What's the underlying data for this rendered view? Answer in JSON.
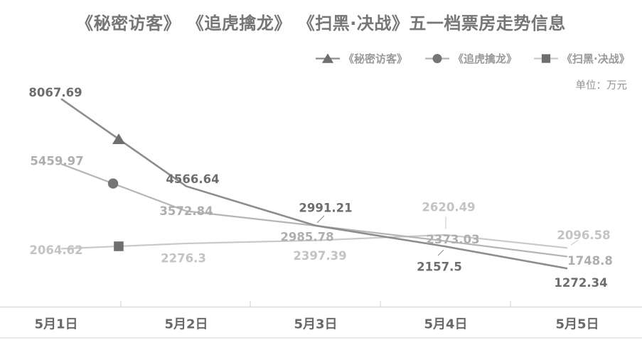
{
  "title": "《秘密访客》 《追虎擒龙》 《扫黑·决战》五一档票房走势信息",
  "unit_label": "单位：万元",
  "legend": {
    "position": "top-right",
    "items": [
      {
        "label": "《秘密访客》",
        "marker": "triangle"
      },
      {
        "label": "《追虎擒龙》",
        "marker": "circle"
      },
      {
        "label": "《扫黑·决战》",
        "marker": "square"
      }
    ]
  },
  "chart_data": {
    "type": "line",
    "title": "《秘密访客》 《追虎擒龙》 《扫黑·决战》五一档票房走势信息",
    "unit": "万元",
    "categories": [
      "5月1日",
      "5月2日",
      "5月3日",
      "5月4日",
      "5月5日"
    ],
    "ylim": [
      0,
      9000
    ],
    "grid": false,
    "legend_position": "top-right",
    "series": [
      {
        "name": "《秘密访客》",
        "marker": "triangle",
        "line_color": "#8d8d8d",
        "marker_color": "#6f6f6f",
        "label_color": "#6d6d6d",
        "values": [
          8067.69,
          4566.64,
          2991.21,
          2157.5,
          1272.34
        ]
      },
      {
        "name": "《追虎擒龙》",
        "marker": "circle",
        "line_color": "#b5b5b5",
        "marker_color": "#757575",
        "label_color": "#aeaeae",
        "values": [
          5459.97,
          3572.84,
          2985.78,
          2373.03,
          1748.8
        ]
      },
      {
        "name": "《扫黑·决战》",
        "marker": "square",
        "line_color": "#c9c9c9",
        "marker_color": "#6f6f6f",
        "label_color": "#c3c3c3",
        "values": [
          2064.62,
          2276.3,
          2397.39,
          2620.49,
          2096.58
        ]
      }
    ]
  },
  "colors": {
    "background": "#ffffff",
    "title_text": "#767676",
    "legend_text": "#9a9a9a",
    "unit_text": "#949494",
    "axis_line": "#d9d9d9",
    "x_label_text": "#696969"
  }
}
